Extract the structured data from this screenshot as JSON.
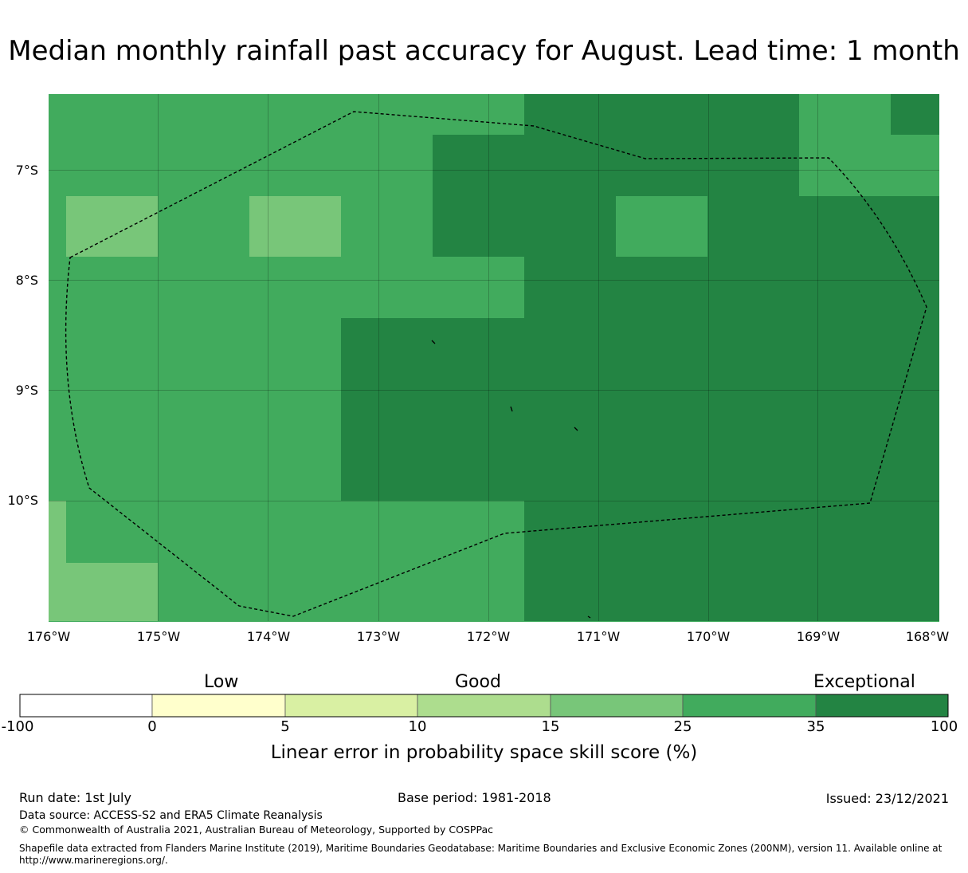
{
  "title": "Median monthly rainfall past accuracy for August. Lead time: 1 month",
  "map": {
    "y_axis_labels": [
      "7°S",
      "8°S",
      "9°S",
      "10°S"
    ],
    "x_axis_labels": [
      "176°W",
      "175°W",
      "174°W",
      "173°W",
      "172°W",
      "171°W",
      "170°W",
      "169°W",
      "168°W"
    ],
    "shading_legend": "Colours show the skill score category of each grid cell"
  },
  "colorbar": {
    "categories": [
      "Low",
      "Good",
      "Exceptional"
    ],
    "ticks": [
      "-100",
      "0",
      "5",
      "10",
      "15",
      "25",
      "35",
      "100"
    ],
    "colors": [
      "#ffffff",
      "#ffffcc",
      "#d9f0a3",
      "#addd8e",
      "#78c679",
      "#41ab5d",
      "#238443"
    ],
    "label": "Linear error in probability space skill score (%)"
  },
  "footer": {
    "run_date": "Run date: 1st July",
    "base_period": "Base period: 1981-2018",
    "issued": "Issued: 23/12/2021",
    "data_source": "Data source: ACCESS-S2 and ERA5 Climate Reanalysis",
    "copyright": "© Commonwealth of Australia 2021, Australian Bureau of Meteorology, Supported by COSPPac",
    "shapefile_line1": "Shapefile data extracted from Flanders Marine Institute (2019), Maritime Boundaries Geodatabase: Maritime Boundaries and Exclusive Economic Zones (200NM), version 11. Available online at",
    "shapefile_line2": "http://www.marineregions.org/."
  }
}
